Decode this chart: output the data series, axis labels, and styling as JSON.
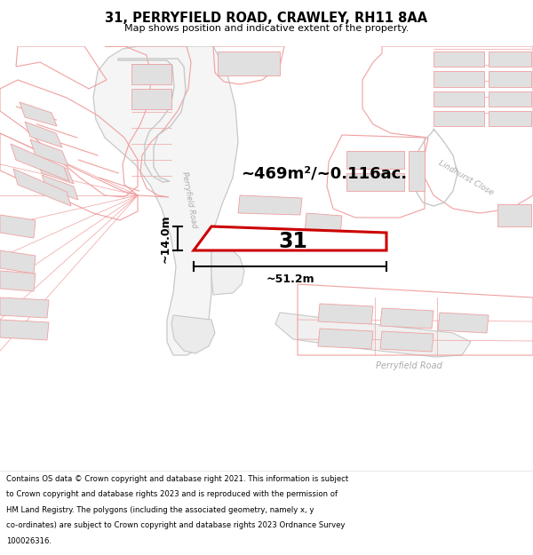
{
  "title": "31, PERRYFIELD ROAD, CRAWLEY, RH11 8AA",
  "subtitle": "Map shows position and indicative extent of the property.",
  "footer_lines": [
    "Contains OS data © Crown copyright and database right 2021. This information is subject",
    "to Crown copyright and database rights 2023 and is reproduced with the permission of",
    "HM Land Registry. The polygons (including the associated geometry, namely x, y",
    "co-ordinates) are subject to Crown copyright and database rights 2023 Ordnance Survey",
    "100026316."
  ],
  "area_text": "~469m²/~0.116ac.",
  "width_text": "~51.2m",
  "height_text": "~14.0m",
  "number_text": "31",
  "road_label_perryfield_diag": "Perryfield Road",
  "road_label_perryfield_btm": "Perryfield Road",
  "close_label": "Lindhurst Close",
  "map_bg": "#ffffff",
  "road_line_color": "#f0a0a0",
  "road_outline_color": "#c8c8c8",
  "building_fill": "#e0e0e0",
  "building_stroke": "#f0a0a0",
  "highlight_stroke": "#cc0000",
  "highlight_fill": "#ffffff",
  "dim_color": "#000000"
}
